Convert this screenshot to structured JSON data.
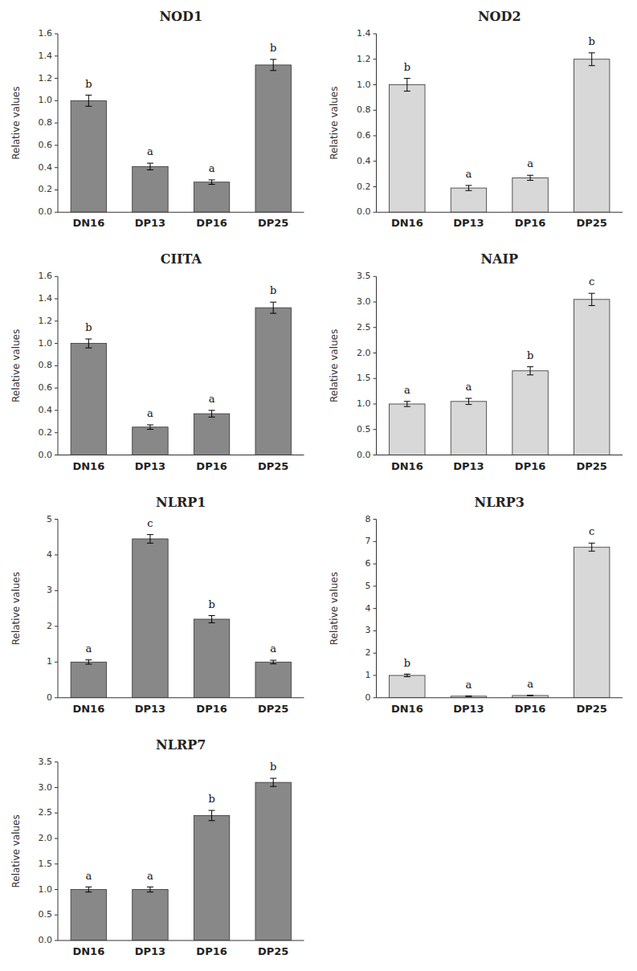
{
  "chart_data": [
    {
      "type": "bar",
      "title": "NOD1",
      "ylabel": "Relative values",
      "categories": [
        "DN16",
        "DP13",
        "DP16",
        "DP25"
      ],
      "values": [
        1.0,
        0.41,
        0.27,
        1.32
      ],
      "errors": [
        0.05,
        0.03,
        0.02,
        0.05
      ],
      "annotations": [
        "b",
        "a",
        "a",
        "b"
      ],
      "color": "#888888",
      "ylim": [
        0,
        1.6
      ],
      "yticks": [
        {
          "value": 0,
          "label": "0.0"
        },
        0.2,
        0.4,
        0.6,
        0.8,
        {
          "value": 1.0,
          "label": "1.0"
        },
        1.2,
        1.4,
        1.6
      ],
      "grid": false
    },
    {
      "type": "bar",
      "title": "NOD2",
      "ylabel": "Relative values",
      "categories": [
        "DN16",
        "DP13",
        "DP16",
        "DP25"
      ],
      "values": [
        1.0,
        0.19,
        0.27,
        1.2
      ],
      "errors": [
        0.05,
        0.02,
        0.02,
        0.05
      ],
      "annotations": [
        "b",
        "a",
        "a",
        "b"
      ],
      "color": "#d8d8d8",
      "ylim": [
        0,
        1.4
      ],
      "yticks": [
        {
          "value": 0,
          "label": "0.0"
        },
        0.2,
        0.4,
        0.6,
        0.8,
        {
          "value": 1.0,
          "label": "1.0"
        },
        1.2,
        1.4
      ],
      "grid": false
    },
    {
      "type": "bar",
      "title": "CIITA",
      "ylabel": "Relative values",
      "categories": [
        "DN16",
        "DP13",
        "DP16",
        "DP25"
      ],
      "values": [
        1.0,
        0.25,
        0.37,
        1.32
      ],
      "errors": [
        0.04,
        0.02,
        0.03,
        0.05
      ],
      "annotations": [
        "b",
        "a",
        "a",
        "b"
      ],
      "color": "#888888",
      "ylim": [
        0,
        1.6
      ],
      "yticks": [
        {
          "value": 0,
          "label": "0.0"
        },
        0.2,
        0.4,
        0.6,
        0.8,
        {
          "value": 1.0,
          "label": "1.0"
        },
        1.2,
        1.4,
        1.6
      ],
      "grid": false
    },
    {
      "type": "bar",
      "title": "NAIP",
      "ylabel": "Relative values",
      "categories": [
        "DN16",
        "DP13",
        "DP16",
        "DP25"
      ],
      "values": [
        1.0,
        1.05,
        1.65,
        3.05
      ],
      "errors": [
        0.05,
        0.06,
        0.08,
        0.12
      ],
      "annotations": [
        "a",
        "a",
        "b",
        "c"
      ],
      "color": "#d8d8d8",
      "ylim": [
        0,
        3.5
      ],
      "yticks": [
        {
          "value": 0,
          "label": "0.0"
        },
        0.5,
        {
          "value": 1.0,
          "label": "1.0"
        },
        1.5,
        {
          "value": 2.0,
          "label": "2.0"
        },
        2.5,
        {
          "value": 3.0,
          "label": "3.0"
        },
        3.5
      ],
      "grid": false
    },
    {
      "type": "bar",
      "title": "NLRP1",
      "ylabel": "Relative values",
      "categories": [
        "DN16",
        "DP13",
        "DP16",
        "DP25"
      ],
      "values": [
        1.0,
        4.45,
        2.2,
        1.0
      ],
      "errors": [
        0.06,
        0.12,
        0.1,
        0.05
      ],
      "annotations": [
        "a",
        "c",
        "b",
        "a"
      ],
      "color": "#888888",
      "ylim": [
        0,
        5
      ],
      "yticks": [
        0,
        1,
        2,
        3,
        4,
        5
      ],
      "grid": false
    },
    {
      "type": "bar",
      "title": "NLRP3",
      "ylabel": "Relative values",
      "categories": [
        "DN16",
        "DP13",
        "DP16",
        "DP25"
      ],
      "values": [
        1.0,
        0.07,
        0.1,
        6.75
      ],
      "errors": [
        0.06,
        0.01,
        0.01,
        0.18
      ],
      "annotations": [
        "b",
        "a",
        "a",
        "c"
      ],
      "color": "#d8d8d8",
      "ylim": [
        0,
        8
      ],
      "yticks": [
        0,
        1,
        2,
        3,
        4,
        5,
        6,
        7,
        8
      ],
      "grid": false
    },
    {
      "type": "bar",
      "title": "NLRP7",
      "ylabel": "Relative values",
      "categories": [
        "DN16",
        "DP13",
        "DP16",
        "DP25"
      ],
      "values": [
        1.0,
        1.0,
        2.45,
        3.1
      ],
      "errors": [
        0.05,
        0.05,
        0.1,
        0.08
      ],
      "annotations": [
        "a",
        "a",
        "b",
        "b"
      ],
      "color": "#888888",
      "ylim": [
        0,
        3.5
      ],
      "yticks": [
        {
          "value": 0,
          "label": "0.0"
        },
        0.5,
        {
          "value": 1.0,
          "label": "1.0"
        },
        1.5,
        {
          "value": 2.0,
          "label": "2.0"
        },
        2.5,
        {
          "value": 3.0,
          "label": "3.0"
        },
        3.5
      ],
      "grid": false
    }
  ]
}
